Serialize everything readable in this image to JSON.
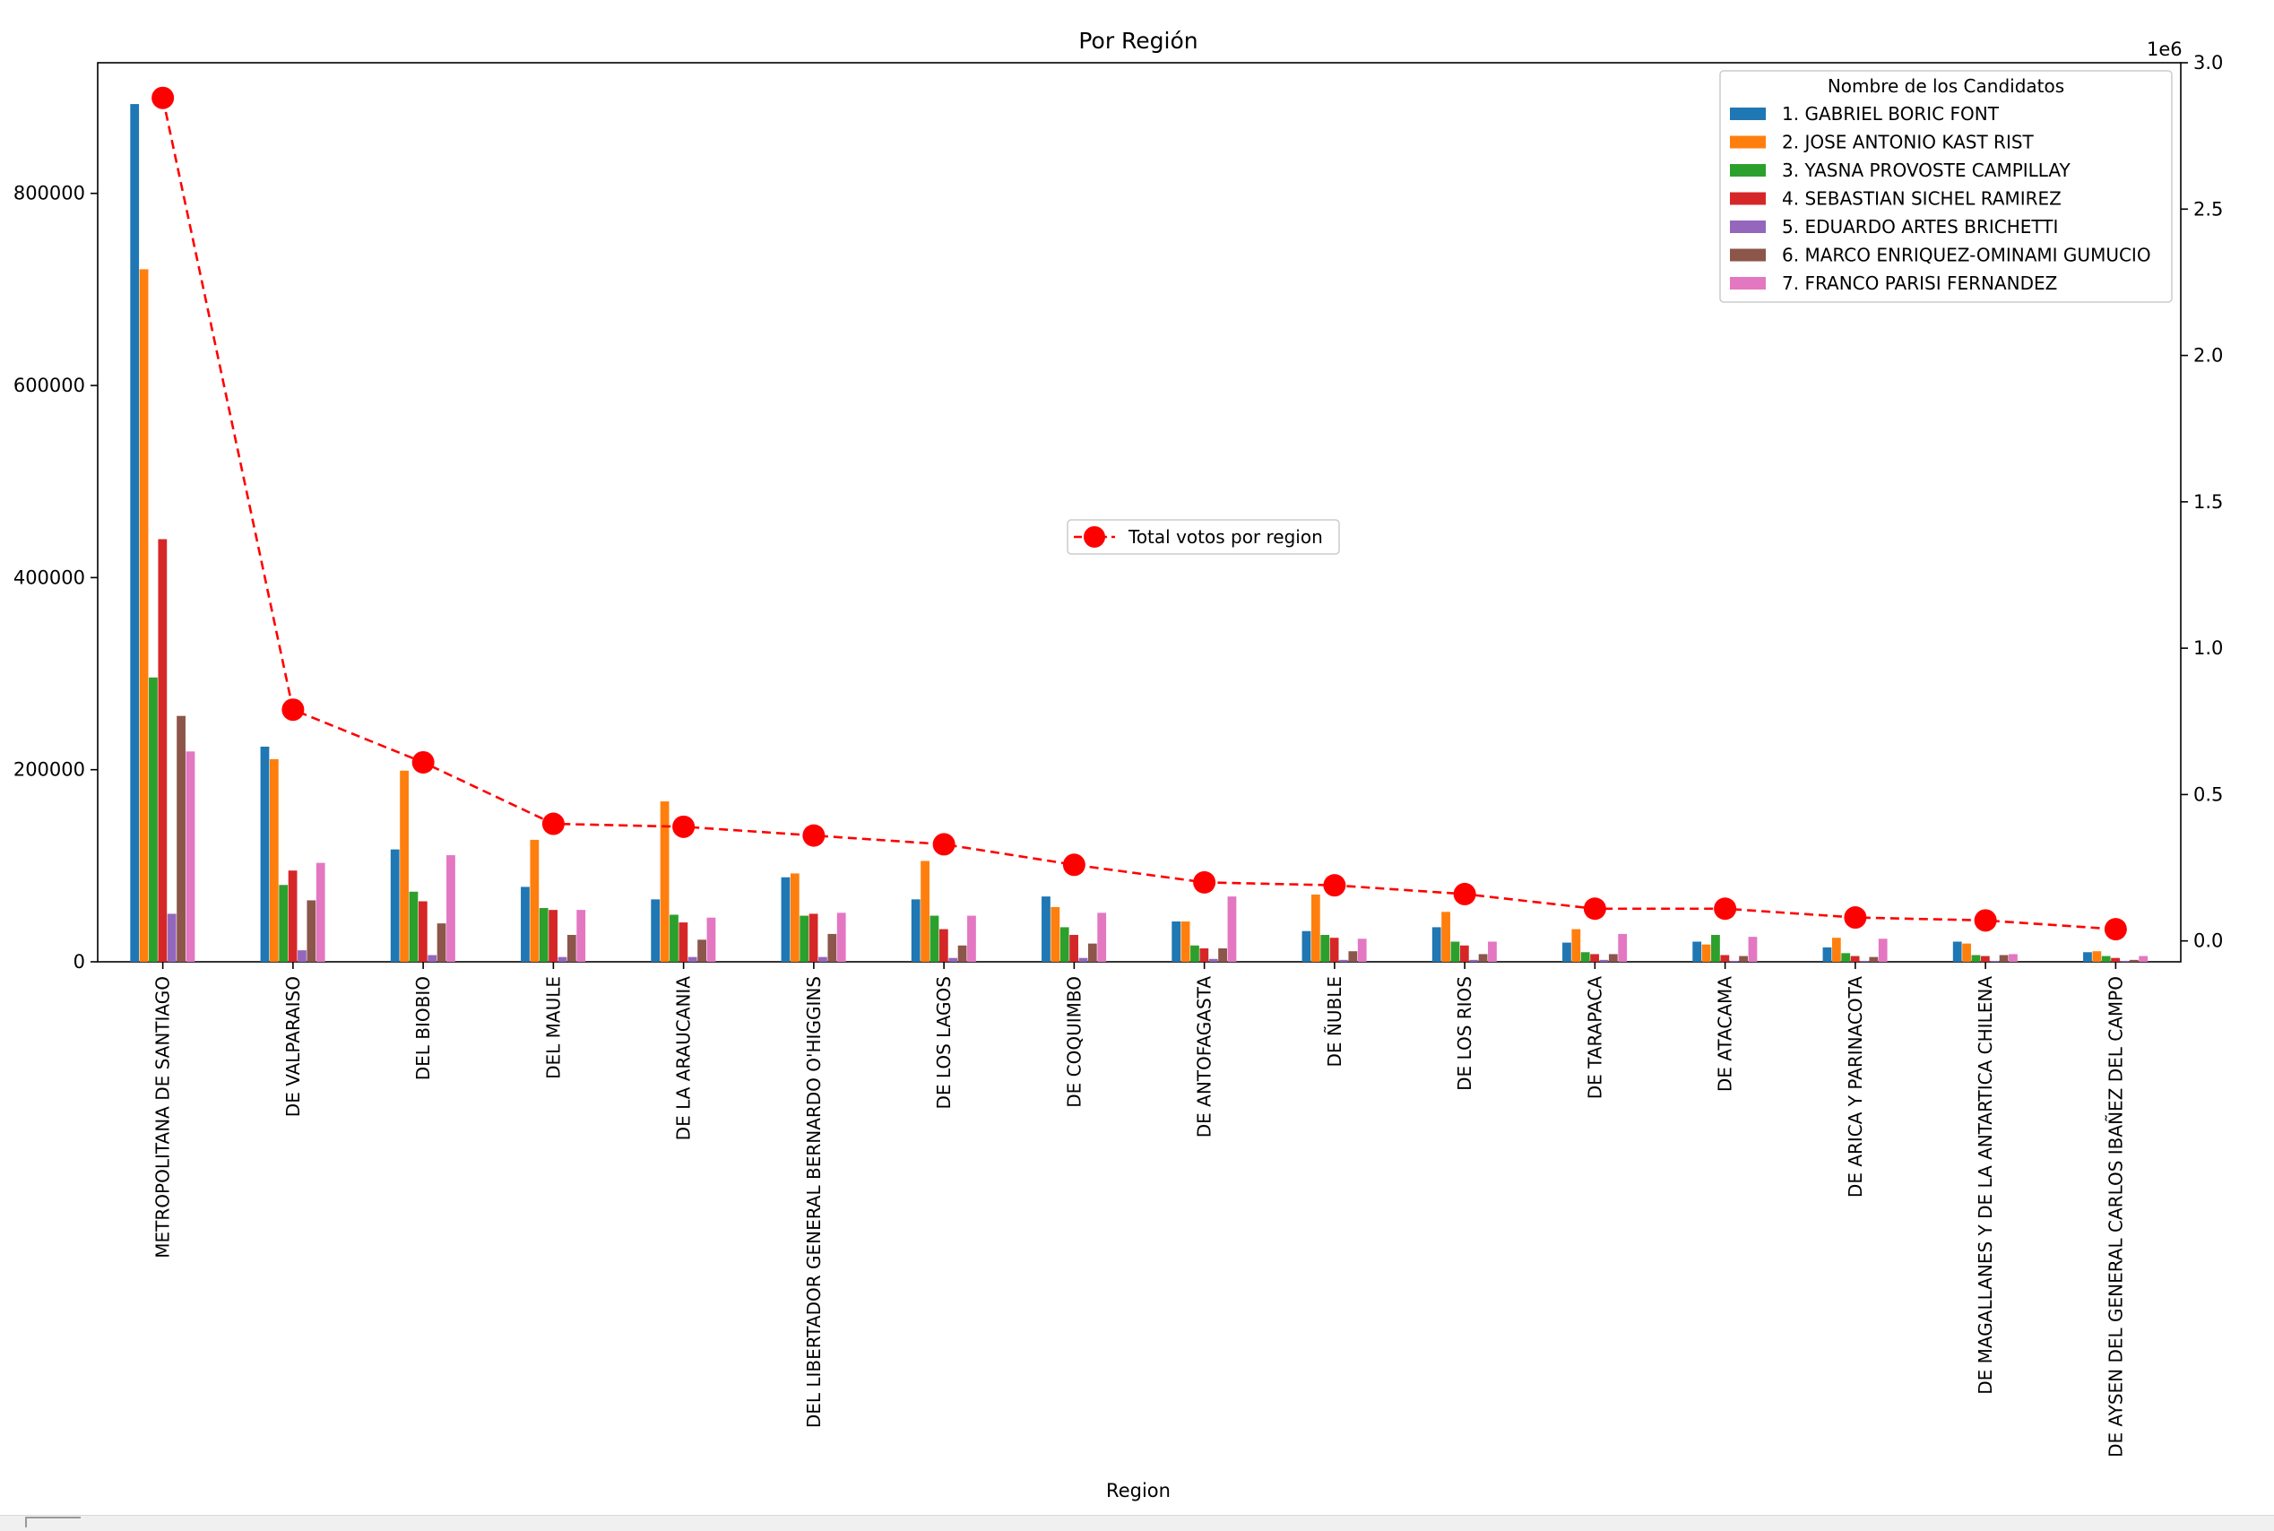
{
  "chart_data": {
    "type": "bar",
    "title": "Por Región",
    "xlabel": "Region",
    "ylabel": "",
    "ylim": [
      0,
      936000
    ],
    "yticks": [
      0,
      200000,
      400000,
      600000,
      800000
    ],
    "categories": [
      "METROPOLITANA DE SANTIAGO",
      "DE VALPARAISO",
      "DEL BIOBIO",
      "DEL MAULE",
      "DE LA ARAUCANIA",
      "DEL LIBERTADOR GENERAL BERNARDO O'HIGGINS",
      "DE LOS LAGOS",
      "DE COQUIMBO",
      "DE ANTOFAGASTA",
      "DE ÑUBLE",
      "DE LOS RIOS",
      "DE TARAPACA",
      "DE ATACAMA",
      "DE ARICA Y PARINACOTA",
      "DE MAGALLANES Y DE LA ANTARTICA CHILENA",
      "DE AYSEN DEL GENERAL CARLOS IBAÑEZ DEL CAMPO"
    ],
    "legend": {
      "title": "Nombre de los Candidatos",
      "position": "top-right"
    },
    "series": [
      {
        "name": "1. GABRIEL BORIC FONT",
        "color": "#1f77b4",
        "values": [
          893000,
          224000,
          117000,
          78000,
          65000,
          88000,
          65000,
          68000,
          42000,
          32000,
          36000,
          20000,
          21000,
          15000,
          21000,
          10000
        ]
      },
      {
        "name": "2. JOSE ANTONIO KAST RIST",
        "color": "#ff7f0e",
        "values": [
          721000,
          211000,
          199000,
          127000,
          167000,
          92000,
          105000,
          57000,
          42000,
          70000,
          52000,
          34000,
          18000,
          25000,
          19000,
          11000
        ]
      },
      {
        "name": "3. YASNA PROVOSTE CAMPILLAY",
        "color": "#2ca02c",
        "values": [
          296000,
          80000,
          73000,
          56000,
          49000,
          48000,
          48000,
          36000,
          17000,
          28000,
          21000,
          10000,
          28000,
          9000,
          7000,
          6000
        ]
      },
      {
        "name": "4. SEBASTIAN SICHEL RAMIREZ",
        "color": "#d62728",
        "values": [
          440000,
          95000,
          63000,
          54000,
          41000,
          50000,
          34000,
          28000,
          14000,
          25000,
          17000,
          8000,
          7000,
          6000,
          6000,
          4000
        ]
      },
      {
        "name": "5. EDUARDO ARTES BRICHETTI",
        "color": "#9467bd",
        "values": [
          50000,
          12000,
          7000,
          5000,
          5000,
          5000,
          4000,
          4000,
          3000,
          2000,
          2000,
          2000,
          1000,
          1000,
          1000,
          1000
        ]
      },
      {
        "name": "6. MARCO ENRIQUEZ-OMINAMI GUMUCIO",
        "color": "#8c564b",
        "values": [
          256000,
          64000,
          40000,
          28000,
          23000,
          29000,
          17000,
          19000,
          14000,
          11000,
          8000,
          8000,
          6000,
          5000,
          7000,
          2000
        ]
      },
      {
        "name": "7. FRANCO PARISI FERNANDEZ",
        "color": "#e377c2",
        "values": [
          219000,
          103000,
          111000,
          54000,
          46000,
          51000,
          48000,
          51000,
          68000,
          24000,
          21000,
          29000,
          26000,
          24000,
          8000,
          6000
        ]
      }
    ],
    "secondary": {
      "name": "Total votos por region",
      "type": "line",
      "style": "dashed",
      "marker": "circle",
      "color": "#ff0000",
      "axis_multiplier_label": "1e6",
      "ylim": [
        -0.0714,
        3.0
      ],
      "yticks": [
        0.0,
        0.5,
        1.0,
        1.5,
        2.0,
        2.5,
        3.0
      ],
      "ytick_labels": [
        "0.0",
        "0.5",
        "1.0",
        "1.5",
        "2.0",
        "2.5",
        "3.0"
      ],
      "legend_position": "center",
      "values": [
        2.88,
        0.79,
        0.61,
        0.4,
        0.39,
        0.36,
        0.33,
        0.26,
        0.2,
        0.19,
        0.16,
        0.11,
        0.11,
        0.08,
        0.07,
        0.04
      ]
    }
  }
}
